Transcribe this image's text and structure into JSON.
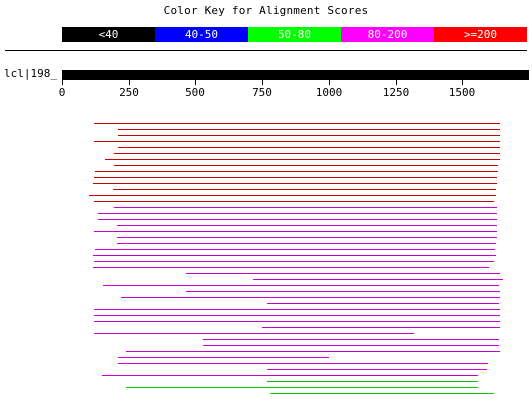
{
  "title": "Color Key for Alignment Scores",
  "color_key": [
    {
      "label": "<40",
      "color": "#000000"
    },
    {
      "label": "40-50",
      "color": "#0000ff"
    },
    {
      "label": "50-80",
      "color": "#00ff00"
    },
    {
      "label": "80-200",
      "color": "#ff00ff"
    },
    {
      "label": ">=200",
      "color": "#ff0000"
    }
  ],
  "query": {
    "label": "lcl|198_",
    "length": 1750
  },
  "axis": {
    "ticks": [
      0,
      250,
      500,
      750,
      1000,
      1250,
      1500
    ]
  },
  "hits": [
    {
      "start": 120,
      "end": 1640,
      "score_class": ">=200"
    },
    {
      "start": 210,
      "end": 1640,
      "score_class": ">=200"
    },
    {
      "start": 210,
      "end": 1640,
      "score_class": ">=200"
    },
    {
      "start": 120,
      "end": 1640,
      "score_class": ">=200"
    },
    {
      "start": 210,
      "end": 1640,
      "score_class": ">=200"
    },
    {
      "start": 195,
      "end": 1640,
      "score_class": ">=200"
    },
    {
      "start": 160,
      "end": 1640,
      "score_class": ">=200"
    },
    {
      "start": 195,
      "end": 1635,
      "score_class": ">=200"
    },
    {
      "start": 125,
      "end": 1635,
      "score_class": ">=200"
    },
    {
      "start": 120,
      "end": 1630,
      "score_class": ">=200"
    },
    {
      "start": 115,
      "end": 1630,
      "score_class": ">=200"
    },
    {
      "start": 190,
      "end": 1625,
      "score_class": ">=200"
    },
    {
      "start": 100,
      "end": 1625,
      "score_class": ">=200"
    },
    {
      "start": 120,
      "end": 1620,
      "score_class": ">=200"
    },
    {
      "start": 195,
      "end": 1630,
      "score_class": "80-200"
    },
    {
      "start": 135,
      "end": 1630,
      "score_class": "80-200"
    },
    {
      "start": 135,
      "end": 1630,
      "score_class": "80-200"
    },
    {
      "start": 205,
      "end": 1630,
      "score_class": "80-200"
    },
    {
      "start": 120,
      "end": 1630,
      "score_class": "80-200"
    },
    {
      "start": 205,
      "end": 1630,
      "score_class": "80-200"
    },
    {
      "start": 205,
      "end": 1625,
      "score_class": "80-200"
    },
    {
      "start": 125,
      "end": 1625,
      "score_class": "80-200"
    },
    {
      "start": 115,
      "end": 1625,
      "score_class": "80-200"
    },
    {
      "start": 120,
      "end": 1620,
      "score_class": "80-200"
    },
    {
      "start": 115,
      "end": 1600,
      "score_class": "80-200"
    },
    {
      "start": 465,
      "end": 1640,
      "score_class": "80-200"
    },
    {
      "start": 715,
      "end": 1650,
      "score_class": "80-200"
    },
    {
      "start": 155,
      "end": 1640,
      "score_class": "80-200"
    },
    {
      "start": 465,
      "end": 1640,
      "score_class": "80-200"
    },
    {
      "start": 220,
      "end": 1640,
      "score_class": "80-200"
    },
    {
      "start": 770,
      "end": 1640,
      "score_class": "80-200"
    },
    {
      "start": 120,
      "end": 1640,
      "score_class": "80-200"
    },
    {
      "start": 120,
      "end": 1640,
      "score_class": "80-200"
    },
    {
      "start": 120,
      "end": 1640,
      "score_class": "80-200"
    },
    {
      "start": 750,
      "end": 1640,
      "score_class": "80-200"
    },
    {
      "start": 120,
      "end": 1320,
      "score_class": "80-200"
    },
    {
      "start": 530,
      "end": 1640,
      "score_class": "80-200"
    },
    {
      "start": 530,
      "end": 1640,
      "score_class": "80-200"
    },
    {
      "start": 240,
      "end": 1640,
      "score_class": "80-200"
    },
    {
      "start": 210,
      "end": 1000,
      "score_class": "80-200"
    },
    {
      "start": 210,
      "end": 1595,
      "score_class": "80-200"
    },
    {
      "start": 770,
      "end": 1595,
      "score_class": "80-200"
    },
    {
      "start": 150,
      "end": 1560,
      "score_class": "80-200"
    },
    {
      "start": 770,
      "end": 1560,
      "score_class": "50-80"
    },
    {
      "start": 240,
      "end": 1560,
      "score_class": "50-80"
    },
    {
      "start": 780,
      "end": 1620,
      "score_class": "50-80"
    }
  ]
}
